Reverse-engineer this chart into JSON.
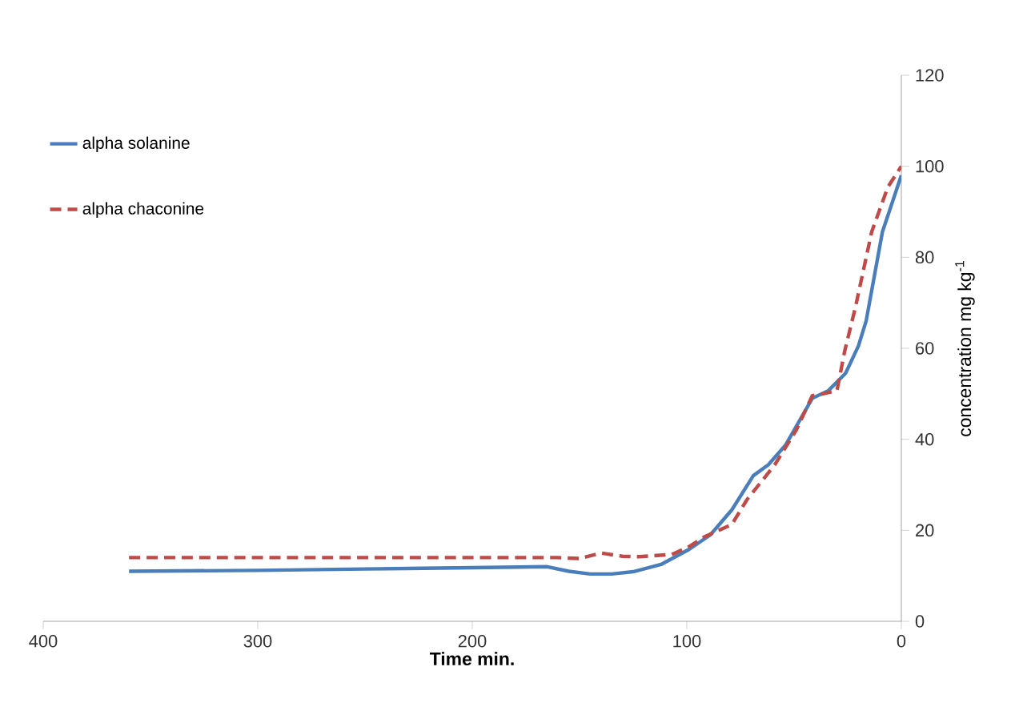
{
  "chart_data": {
    "type": "line",
    "xlabel": "Time min.",
    "ylabel": "concentration mg kg$^{-1}$",
    "xlim": [
      400,
      0
    ],
    "xticks": [
      400,
      300,
      200,
      100,
      0
    ],
    "ylim": [
      0,
      120
    ],
    "yticks": [
      0,
      20,
      40,
      60,
      80,
      100,
      120
    ],
    "legend": "top left",
    "marker": "none",
    "grid": false,
    "series": [
      {
        "name": "alpha solanine",
        "color": "#4a7ebb",
        "line_style": "solid",
        "x": [
          360,
          300,
          250,
          200,
          165,
          155,
          145,
          135,
          125,
          112,
          99,
          89,
          79,
          69,
          62,
          54,
          41.5,
          34,
          26,
          20,
          16.4,
          8.8,
          0
        ],
        "values": [
          11,
          11.2,
          11.5,
          11.8,
          12,
          11,
          10.4,
          10.4,
          10.9,
          12.5,
          15.8,
          19,
          24.5,
          32,
          34.4,
          38.7,
          49,
          50.7,
          54.5,
          60.5,
          66,
          85.6,
          98
        ]
      },
      {
        "name": "alpha chaconine",
        "color": "#be4b48",
        "line_style": "dashed",
        "x": [
          360,
          300,
          250,
          200,
          160,
          150,
          140,
          130,
          122,
          107,
          99,
          92,
          79,
          72,
          59,
          49,
          41.5,
          36.5,
          30,
          26.4,
          21.4,
          13.8,
          6.3,
          0
        ],
        "values": [
          14,
          14,
          14,
          14,
          14,
          13.8,
          15,
          14.3,
          14.2,
          14.7,
          16.4,
          18.5,
          21.3,
          26.7,
          34.4,
          42,
          49.6,
          50,
          50.7,
          59.4,
          69,
          85.6,
          95.4,
          100
        ]
      }
    ]
  }
}
